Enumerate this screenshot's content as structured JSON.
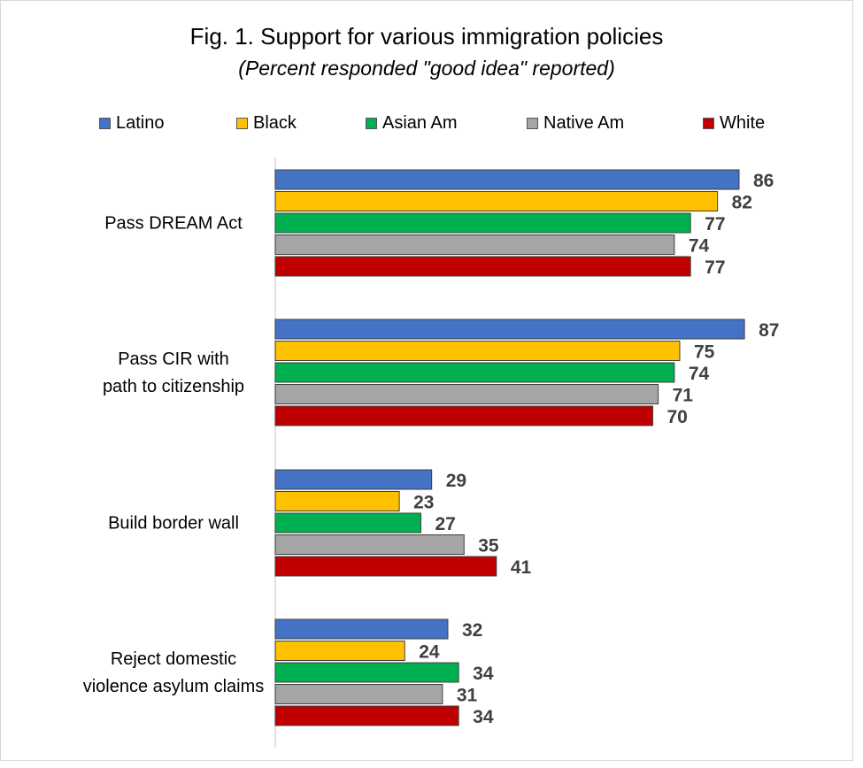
{
  "chart_data": {
    "type": "bar",
    "orientation": "horizontal",
    "title": "Fig. 1. Support for various immigration policies",
    "subtitle": "(Percent responded \"good idea\" reported)",
    "categories": [
      [
        "Pass DREAM Act"
      ],
      [
        "Pass CIR with",
        "path to citizenship"
      ],
      [
        "Build border wall"
      ],
      [
        "Reject domestic",
        "violence asylum claims"
      ]
    ],
    "series": [
      {
        "name": "Latino",
        "color": "#4472C4",
        "values": [
          86,
          87,
          29,
          32
        ]
      },
      {
        "name": "Black",
        "color": "#FFC000",
        "values": [
          82,
          75,
          23,
          24
        ]
      },
      {
        "name": "Asian Am",
        "color": "#00B050",
        "values": [
          77,
          74,
          27,
          34
        ]
      },
      {
        "name": "Native Am",
        "color": "#A5A5A5",
        "values": [
          74,
          71,
          35,
          31
        ]
      },
      {
        "name": "White",
        "color": "#C00000",
        "values": [
          77,
          70,
          41,
          34
        ]
      }
    ],
    "xlim": [
      0,
      100
    ],
    "legend_position": "top",
    "data_labels": true,
    "grid": false
  }
}
